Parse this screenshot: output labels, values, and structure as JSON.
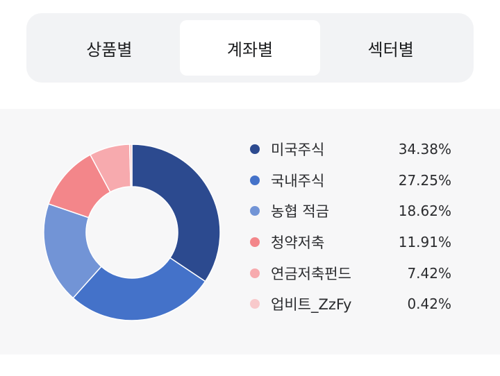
{
  "tabs": [
    {
      "label": "상품별",
      "active": false
    },
    {
      "label": "계좌별",
      "active": true
    },
    {
      "label": "섹터별",
      "active": false
    }
  ],
  "chart_data": {
    "type": "pie",
    "categories": [
      "미국주식",
      "국내주식",
      "농협 적금",
      "청약저축",
      "연금저축펀드",
      "업비트_ZzFy"
    ],
    "values": [
      34.38,
      27.25,
      18.62,
      11.91,
      7.42,
      0.42
    ],
    "value_labels": [
      "34.38%",
      "27.25%",
      "18.62%",
      "11.91%",
      "7.42%",
      "0.42%"
    ],
    "colors": [
      "#2c4a8f",
      "#4472c9",
      "#7294d6",
      "#f3868a",
      "#f7aaae",
      "#f8c9cb"
    ],
    "donut": true
  }
}
